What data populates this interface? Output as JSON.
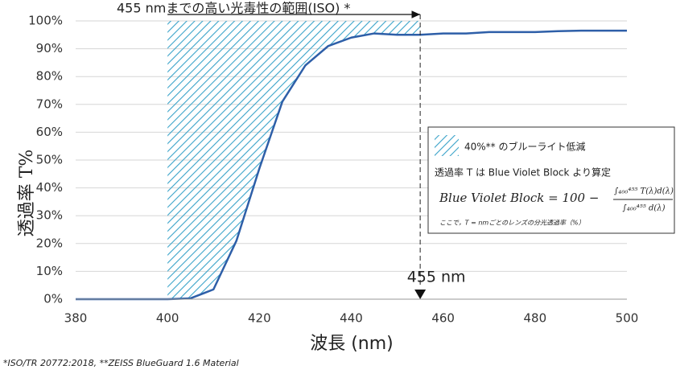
{
  "chart_data": {
    "type": "line",
    "title": "455 nmまでの高い光毒性の範囲(ISO) *",
    "x_label": "波長 (nm)",
    "y_label": "透過率 T%",
    "x": [
      380,
      385,
      390,
      395,
      400,
      405,
      410,
      415,
      420,
      425,
      430,
      435,
      440,
      445,
      450,
      455,
      460,
      465,
      470,
      475,
      480,
      485,
      490,
      495,
      500
    ],
    "series": [
      {
        "color": "#2e5fa8",
        "values": [
          0,
          0,
          0,
          0,
          0,
          0.3,
          3.5,
          21,
          47,
          71,
          84,
          91,
          94,
          95.5,
          95,
          95,
          95.5,
          95.5,
          96,
          96,
          96,
          96.3,
          96.5,
          96.5,
          96.5
        ]
      }
    ],
    "xlim": [
      380,
      500
    ],
    "xticks": [
      380,
      400,
      420,
      440,
      460,
      480,
      500
    ],
    "ylim": [
      0,
      100
    ],
    "yticks": [
      {
        "value": 0,
        "label": "0%"
      },
      {
        "value": 10,
        "label": "10%"
      },
      {
        "value": 20,
        "label": "20%"
      },
      {
        "value": 30,
        "label": "30%"
      },
      {
        "value": 40,
        "label": "40%"
      },
      {
        "value": 50,
        "label": "50%"
      },
      {
        "value": 60,
        "label": "60%"
      },
      {
        "value": 70,
        "label": "70%"
      },
      {
        "value": 80,
        "label": "80%"
      },
      {
        "value": 90,
        "label": "90%"
      },
      {
        "value": 100,
        "label": "100%"
      }
    ],
    "grid": true,
    "hatch_color": "#3aa3c9",
    "hatch_x": [
      400,
      455
    ],
    "marker": {
      "x": 455,
      "label": "455 nm"
    },
    "legend": {
      "hatch_label": "40%** のブルーライト低減",
      "line2": "透過率 T は Blue Violet Block より算定",
      "formula_lhs": "Blue Violet Block = 100 −",
      "formula_num": "∫₄₀₀⁴⁵⁵ T(λ)d(λ)",
      "formula_den": "∫₄₀₀⁴⁵⁵ d(λ)",
      "note": "ここで，T = nmごとのレンズの分光透過率（%）"
    },
    "footnote": "*ISO/TR 20772:2018, **ZEISS BlueGuard 1.6 Material"
  }
}
